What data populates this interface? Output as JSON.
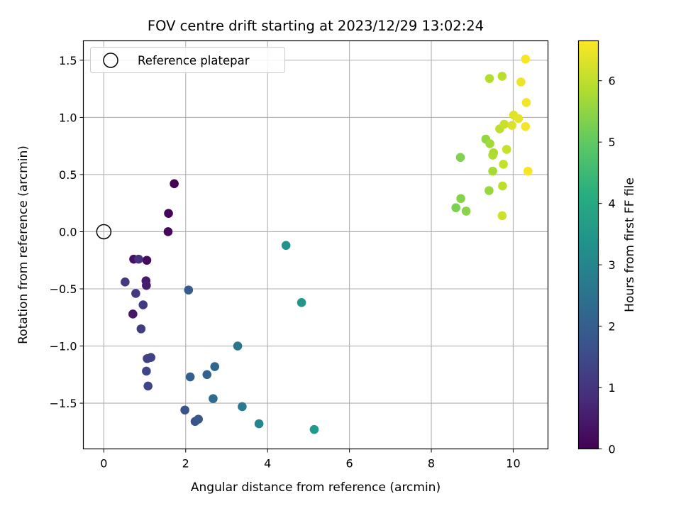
{
  "chart_data": {
    "type": "scatter",
    "title": "FOV centre drift starting at 2023/12/29 13:02:24",
    "xlabel": "Angular distance from reference (arcmin)",
    "ylabel": "Rotation from reference (arcmin)",
    "xlim": [
      -0.5,
      10.85
    ],
    "ylim": [
      -1.9,
      1.67
    ],
    "xticks": [
      0,
      2,
      4,
      6,
      8,
      10
    ],
    "yticks": [
      -1.5,
      -1.0,
      -0.5,
      0.0,
      0.5,
      1.0,
      1.5
    ],
    "xtick_labels": [
      "0",
      "2",
      "4",
      "6",
      "8",
      "10"
    ],
    "ytick_labels": [
      "−1.5",
      "−1.0",
      "−0.5",
      "0.0",
      "0.5",
      "1.0",
      "1.5"
    ],
    "grid": true,
    "legend": {
      "position": "top-left",
      "entries": [
        "Reference platepar"
      ]
    },
    "reference_point": {
      "x": 0,
      "y": 0,
      "label": "Reference platepar"
    },
    "colorbar": {
      "label": "Hours from first FF file",
      "colormap": "viridis",
      "range": [
        0,
        6.65
      ],
      "ticks": [
        0,
        1,
        2,
        3,
        4,
        5,
        6
      ],
      "tick_labels": [
        "0",
        "1",
        "2",
        "3",
        "4",
        "5",
        "6"
      ]
    },
    "points": [
      {
        "x": 1.72,
        "y": 0.42,
        "hours": 0.05
      },
      {
        "x": 1.58,
        "y": 0.16,
        "hours": 0.1
      },
      {
        "x": 1.57,
        "y": 0.0,
        "hours": 0.15
      },
      {
        "x": 1.05,
        "y": -0.25,
        "hours": 0.2
      },
      {
        "x": 0.73,
        "y": -0.24,
        "hours": 0.3
      },
      {
        "x": 0.71,
        "y": -0.72,
        "hours": 0.4
      },
      {
        "x": 1.03,
        "y": -0.43,
        "hours": 0.5
      },
      {
        "x": 1.04,
        "y": -0.47,
        "hours": 0.55
      },
      {
        "x": 0.85,
        "y": -0.24,
        "hours": 0.9
      },
      {
        "x": 0.52,
        "y": -0.44,
        "hours": 1.1
      },
      {
        "x": 0.78,
        "y": -0.54,
        "hours": 1.1
      },
      {
        "x": 0.96,
        "y": -0.64,
        "hours": 1.15
      },
      {
        "x": 0.91,
        "y": -0.85,
        "hours": 1.2
      },
      {
        "x": 1.06,
        "y": -1.11,
        "hours": 1.3
      },
      {
        "x": 1.15,
        "y": -1.1,
        "hours": 1.3
      },
      {
        "x": 1.04,
        "y": -1.22,
        "hours": 1.4
      },
      {
        "x": 1.08,
        "y": -1.35,
        "hours": 1.4
      },
      {
        "x": 1.98,
        "y": -1.56,
        "hours": 1.7
      },
      {
        "x": 2.23,
        "y": -1.66,
        "hours": 1.7
      },
      {
        "x": 2.31,
        "y": -1.64,
        "hours": 1.8
      },
      {
        "x": 2.07,
        "y": -0.51,
        "hours": 1.9
      },
      {
        "x": 2.11,
        "y": -1.27,
        "hours": 2.0
      },
      {
        "x": 2.52,
        "y": -1.25,
        "hours": 2.1
      },
      {
        "x": 2.71,
        "y": -1.18,
        "hours": 2.2
      },
      {
        "x": 2.67,
        "y": -1.46,
        "hours": 2.3
      },
      {
        "x": 3.27,
        "y": -1.0,
        "hours": 2.6
      },
      {
        "x": 3.38,
        "y": -1.53,
        "hours": 2.7
      },
      {
        "x": 3.79,
        "y": -1.68,
        "hours": 3.0
      },
      {
        "x": 4.45,
        "y": -0.12,
        "hours": 3.4
      },
      {
        "x": 4.83,
        "y": -0.62,
        "hours": 3.5
      },
      {
        "x": 5.14,
        "y": -1.73,
        "hours": 3.6
      },
      {
        "x": 8.6,
        "y": 0.21,
        "hours": 5.3
      },
      {
        "x": 8.71,
        "y": 0.65,
        "hours": 5.35
      },
      {
        "x": 8.72,
        "y": 0.29,
        "hours": 5.4
      },
      {
        "x": 8.85,
        "y": 0.18,
        "hours": 5.45
      },
      {
        "x": 9.33,
        "y": 0.81,
        "hours": 5.55
      },
      {
        "x": 9.41,
        "y": 0.36,
        "hours": 5.6
      },
      {
        "x": 9.43,
        "y": 0.77,
        "hours": 5.7
      },
      {
        "x": 9.5,
        "y": 0.53,
        "hours": 5.75
      },
      {
        "x": 9.52,
        "y": 0.69,
        "hours": 5.8
      },
      {
        "x": 9.5,
        "y": 0.67,
        "hours": 5.85
      },
      {
        "x": 9.42,
        "y": 1.34,
        "hours": 5.9
      },
      {
        "x": 9.73,
        "y": 1.36,
        "hours": 5.95
      },
      {
        "x": 9.67,
        "y": 0.9,
        "hours": 6.0
      },
      {
        "x": 9.74,
        "y": 0.4,
        "hours": 6.0
      },
      {
        "x": 9.76,
        "y": 0.59,
        "hours": 6.05
      },
      {
        "x": 9.78,
        "y": 0.94,
        "hours": 6.1
      },
      {
        "x": 9.84,
        "y": 0.72,
        "hours": 6.1
      },
      {
        "x": 9.73,
        "y": 0.14,
        "hours": 6.15
      },
      {
        "x": 9.97,
        "y": 0.93,
        "hours": 6.3
      },
      {
        "x": 10.01,
        "y": 1.02,
        "hours": 6.35
      },
      {
        "x": 10.13,
        "y": 0.99,
        "hours": 6.4
      },
      {
        "x": 10.19,
        "y": 1.31,
        "hours": 6.5
      },
      {
        "x": 10.3,
        "y": 0.92,
        "hours": 6.55
      },
      {
        "x": 10.32,
        "y": 1.13,
        "hours": 6.55
      },
      {
        "x": 10.3,
        "y": 1.51,
        "hours": 6.6
      },
      {
        "x": 10.36,
        "y": 0.53,
        "hours": 6.6
      }
    ]
  }
}
